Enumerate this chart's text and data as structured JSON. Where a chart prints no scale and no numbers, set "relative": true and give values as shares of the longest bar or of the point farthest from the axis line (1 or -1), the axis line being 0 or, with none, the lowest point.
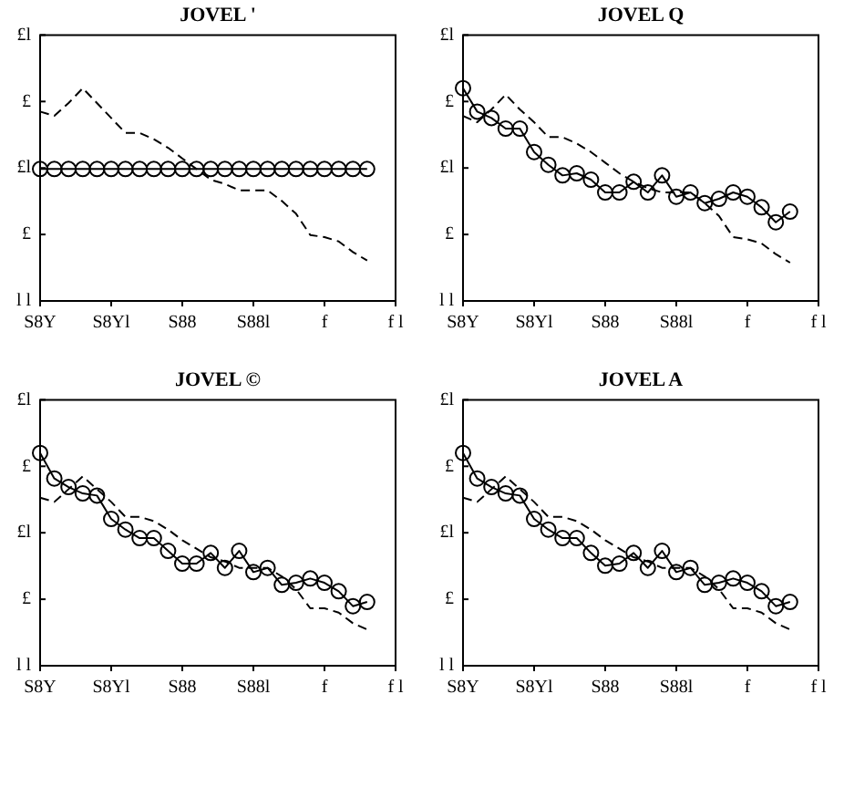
{
  "chart_data": [
    {
      "type": "line",
      "title": "JOVEL '",
      "relative": true,
      "annotations": [
        "£l",
        "£",
        "£l",
        "£",
        "l l"
      ],
      "categories": [
        "S8Y",
        null,
        null,
        null,
        null,
        "S8Yl",
        null,
        null,
        null,
        null,
        "S88",
        null,
        null,
        null,
        null,
        "S88l",
        null,
        null,
        null,
        null,
        "f",
        null,
        null,
        null,
        null,
        "f l"
      ],
      "legend": false,
      "grid": false,
      "series": [
        {
          "color": "#000000",
          "line_style": "dashed",
          "marker": "none",
          "values": [
            0.89,
            0.87,
            0.93,
            1,
            0.93,
            0.86,
            0.79,
            0.79,
            0.76,
            0.72,
            0.67,
            0.62,
            0.57,
            0.55,
            0.52,
            0.52,
            0.52,
            0.47,
            0.41,
            0.31,
            0.3,
            0.28,
            0.23,
            0.19,
            null,
            null
          ]
        },
        {
          "color": "#000000",
          "line_style": "solid",
          "marker": "circle",
          "values": [
            0.62,
            0.62,
            0.62,
            0.62,
            0.62,
            0.62,
            0.62,
            0.62,
            0.62,
            0.62,
            0.62,
            0.62,
            0.62,
            0.62,
            0.62,
            0.62,
            0.62,
            0.62,
            0.62,
            0.62,
            0.62,
            0.62,
            0.62,
            0.62,
            null,
            null
          ]
        }
      ]
    },
    {
      "type": "line",
      "title": "JOVEL Q",
      "relative": true,
      "annotations": [
        "£l",
        "£",
        "£l",
        "£",
        "l l"
      ],
      "categories": [
        "S8Y",
        null,
        null,
        null,
        null,
        "S8Yl",
        null,
        null,
        null,
        null,
        "S88",
        null,
        null,
        null,
        null,
        "S88l",
        null,
        null,
        null,
        null,
        "f",
        null,
        null,
        null,
        null,
        "f l"
      ],
      "legend": false,
      "grid": false,
      "series": [
        {
          "color": "#000000",
          "line_style": "dashed",
          "marker": "none",
          "values": [
            0.87,
            0.84,
            0.9,
            0.97,
            0.9,
            0.84,
            0.77,
            0.77,
            0.74,
            0.7,
            0.65,
            0.6,
            0.56,
            0.53,
            0.51,
            0.51,
            0.51,
            0.46,
            0.4,
            0.3,
            0.29,
            0.27,
            0.22,
            0.18,
            null,
            null
          ]
        },
        {
          "color": "#000000",
          "line_style": "solid",
          "marker": "circle",
          "values": [
            1,
            0.89,
            0.86,
            0.81,
            0.81,
            0.7,
            0.64,
            0.59,
            0.6,
            0.57,
            0.51,
            0.51,
            0.56,
            0.51,
            0.59,
            0.49,
            0.51,
            0.46,
            0.48,
            0.51,
            0.49,
            0.44,
            0.37,
            0.42,
            null,
            null
          ]
        }
      ]
    },
    {
      "type": "line",
      "title": "JOVEL ©",
      "relative": true,
      "annotations": [
        "£l",
        "£",
        "£l",
        "£",
        "l l"
      ],
      "categories": [
        "S8Y",
        null,
        null,
        null,
        null,
        "S8Yl",
        null,
        null,
        null,
        null,
        "S88",
        null,
        null,
        null,
        null,
        "S88l",
        null,
        null,
        null,
        null,
        "f",
        null,
        null,
        null,
        null,
        "f l"
      ],
      "legend": false,
      "grid": false,
      "series": [
        {
          "color": "#000000",
          "line_style": "dashed",
          "marker": "none",
          "values": [
            0.79,
            0.77,
            0.83,
            0.89,
            0.83,
            0.77,
            0.7,
            0.7,
            0.68,
            0.64,
            0.59,
            0.55,
            0.51,
            0.49,
            0.46,
            0.46,
            0.46,
            0.42,
            0.36,
            0.27,
            0.27,
            0.25,
            0.2,
            0.17,
            null,
            null
          ]
        },
        {
          "color": "#000000",
          "line_style": "solid",
          "marker": "circle",
          "values": [
            1,
            0.88,
            0.84,
            0.81,
            0.8,
            0.69,
            0.64,
            0.6,
            0.6,
            0.54,
            0.48,
            0.48,
            0.53,
            0.46,
            0.54,
            0.44,
            0.46,
            0.38,
            0.39,
            0.41,
            0.39,
            0.35,
            0.28,
            0.3,
            null,
            null
          ]
        }
      ]
    },
    {
      "type": "line",
      "title": "JOVEL A",
      "relative": true,
      "annotations": [
        "£l",
        "£",
        "£l",
        "£",
        "l l"
      ],
      "categories": [
        "S8Y",
        null,
        null,
        null,
        null,
        "S8Yl",
        null,
        null,
        null,
        null,
        "S88",
        null,
        null,
        null,
        null,
        "S88l",
        null,
        null,
        null,
        null,
        "f",
        null,
        null,
        null,
        null,
        "f l"
      ],
      "legend": false,
      "grid": false,
      "series": [
        {
          "color": "#000000",
          "line_style": "dashed",
          "marker": "none",
          "values": [
            0.79,
            0.77,
            0.83,
            0.89,
            0.83,
            0.77,
            0.7,
            0.7,
            0.68,
            0.64,
            0.59,
            0.55,
            0.51,
            0.49,
            0.46,
            0.46,
            0.46,
            0.42,
            0.36,
            0.27,
            0.27,
            0.25,
            0.2,
            0.17,
            null,
            null
          ]
        },
        {
          "color": "#000000",
          "line_style": "solid",
          "marker": "circle",
          "values": [
            1,
            0.88,
            0.84,
            0.81,
            0.8,
            0.69,
            0.64,
            0.6,
            0.6,
            0.53,
            0.47,
            0.48,
            0.53,
            0.46,
            0.54,
            0.44,
            0.46,
            0.38,
            0.39,
            0.41,
            0.39,
            0.35,
            0.28,
            0.3,
            null,
            null
          ]
        }
      ]
    }
  ]
}
